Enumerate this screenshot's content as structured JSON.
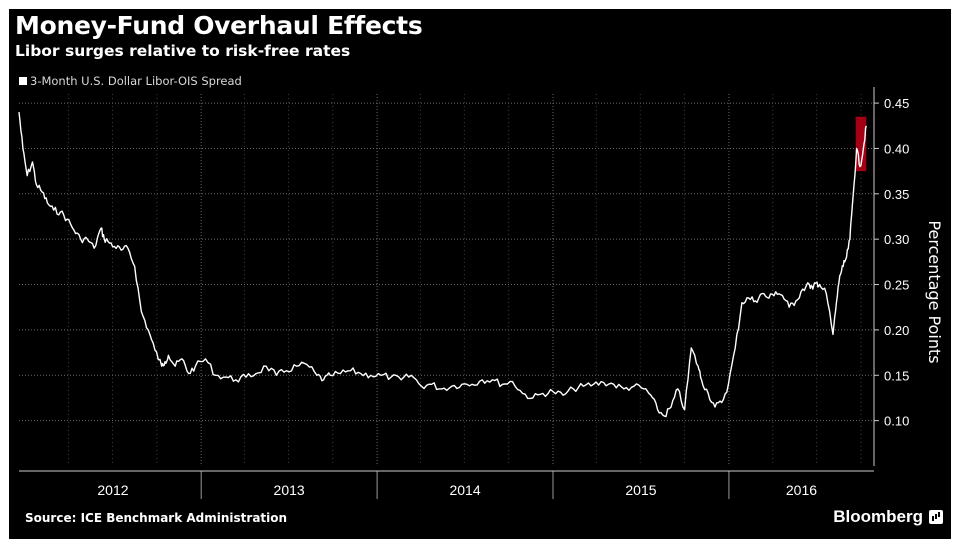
{
  "chart_data": {
    "type": "line",
    "title": "Money-Fund Overhaul Effects",
    "subtitle": "Libor surges relative to risk-free rates",
    "ylabel": "Percentage Points",
    "ylim": [
      0.05,
      0.46
    ],
    "yticks": [
      0.1,
      0.15,
      0.2,
      0.25,
      0.3,
      0.35,
      0.4,
      0.45
    ],
    "ytick_labels": [
      "0.10",
      "0.15",
      "0.20",
      "0.25",
      "0.30",
      "0.35",
      "0.40",
      "0.45"
    ],
    "xlim": [
      "2011-12-20",
      "2016-10-28"
    ],
    "x_categories": [
      "2012",
      "2013",
      "2014",
      "2015",
      "2016"
    ],
    "grid": true,
    "legend_position": "top-left",
    "highlight": {
      "from": "2016-09-20",
      "to": "2016-10-12",
      "color": "#c0001a",
      "range": [
        0.375,
        0.435
      ]
    },
    "series": [
      {
        "name": "3-Month U.S. Dollar Libor-OIS Spread",
        "color": "#ffffff",
        "x": [
          "2011-12-20",
          "2011-12-28",
          "2012-01-06",
          "2012-01-17",
          "2012-01-25",
          "2012-02-06",
          "2012-02-17",
          "2012-03-01",
          "2012-03-15",
          "2012-03-29",
          "2012-04-12",
          "2012-04-26",
          "2012-05-10",
          "2012-05-24",
          "2012-06-07",
          "2012-06-14",
          "2012-06-21",
          "2012-07-05",
          "2012-07-19",
          "2012-08-02",
          "2012-08-16",
          "2012-08-30",
          "2012-09-13",
          "2012-09-27",
          "2012-10-11",
          "2012-10-18",
          "2012-10-25",
          "2012-11-08",
          "2012-11-22",
          "2012-12-06",
          "2012-12-20",
          "2013-01-10",
          "2013-01-31",
          "2013-02-21",
          "2013-03-14",
          "2013-04-04",
          "2013-04-25",
          "2013-05-16",
          "2013-06-06",
          "2013-06-27",
          "2013-07-18",
          "2013-08-08",
          "2013-08-29",
          "2013-09-12",
          "2013-09-26",
          "2013-10-17",
          "2013-11-07",
          "2013-11-28",
          "2013-12-19",
          "2014-01-09",
          "2014-01-30",
          "2014-02-20",
          "2014-03-13",
          "2014-04-03",
          "2014-04-24",
          "2014-05-15",
          "2014-06-05",
          "2014-06-26",
          "2014-07-17",
          "2014-08-07",
          "2014-08-28",
          "2014-09-18",
          "2014-10-09",
          "2014-10-30",
          "2014-11-20",
          "2014-12-11",
          "2015-01-01",
          "2015-01-22",
          "2015-02-12",
          "2015-03-05",
          "2015-03-26",
          "2015-04-16",
          "2015-05-07",
          "2015-05-28",
          "2015-06-18",
          "2015-07-09",
          "2015-07-23",
          "2015-08-06",
          "2015-08-20",
          "2015-09-03",
          "2015-09-17",
          "2015-10-01",
          "2015-10-15",
          "2015-10-29",
          "2015-11-05",
          "2015-11-19",
          "2015-12-03",
          "2015-12-17",
          "2015-12-31",
          "2016-01-14",
          "2016-01-28",
          "2016-02-11",
          "2016-02-25",
          "2016-03-10",
          "2016-03-24",
          "2016-04-07",
          "2016-04-21",
          "2016-05-05",
          "2016-05-19",
          "2016-06-02",
          "2016-06-16",
          "2016-06-23",
          "2016-06-30",
          "2016-07-07",
          "2016-07-21",
          "2016-08-04",
          "2016-08-11",
          "2016-08-18",
          "2016-08-25",
          "2016-09-01",
          "2016-09-08",
          "2016-09-15",
          "2016-09-22",
          "2016-09-29",
          "2016-10-06",
          "2016-10-12"
        ],
        "values": [
          0.44,
          0.4,
          0.37,
          0.385,
          0.36,
          0.352,
          0.34,
          0.332,
          0.33,
          0.322,
          0.31,
          0.3,
          0.3,
          0.29,
          0.312,
          0.3,
          0.298,
          0.292,
          0.288,
          0.29,
          0.27,
          0.22,
          0.2,
          0.178,
          0.16,
          0.165,
          0.172,
          0.16,
          0.168,
          0.152,
          0.16,
          0.168,
          0.15,
          0.148,
          0.145,
          0.148,
          0.152,
          0.16,
          0.15,
          0.155,
          0.16,
          0.162,
          0.15,
          0.145,
          0.15,
          0.152,
          0.155,
          0.152,
          0.15,
          0.15,
          0.148,
          0.145,
          0.15,
          0.138,
          0.14,
          0.135,
          0.138,
          0.14,
          0.14,
          0.145,
          0.145,
          0.14,
          0.143,
          0.13,
          0.125,
          0.13,
          0.132,
          0.128,
          0.135,
          0.138,
          0.14,
          0.142,
          0.14,
          0.135,
          0.138,
          0.135,
          0.128,
          0.112,
          0.105,
          0.115,
          0.135,
          0.112,
          0.18,
          0.16,
          0.145,
          0.13,
          0.115,
          0.12,
          0.14,
          0.18,
          0.23,
          0.235,
          0.232,
          0.24,
          0.235,
          0.242,
          0.238,
          0.225,
          0.232,
          0.245,
          0.25,
          0.245,
          0.252,
          0.25,
          0.24,
          0.195,
          0.23,
          0.26,
          0.27,
          0.28,
          0.3,
          0.35,
          0.4,
          0.38,
          0.4,
          0.425
        ]
      }
    ],
    "source": "Source: ICE Benchmark Administration",
    "brand": "Bloomberg"
  }
}
